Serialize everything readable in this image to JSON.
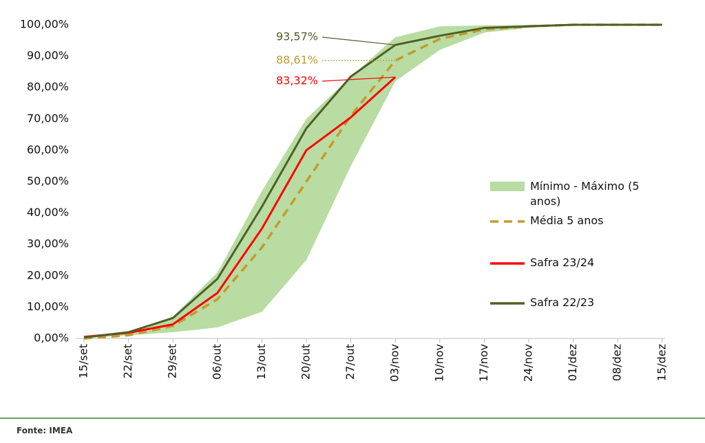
{
  "chart_data": {
    "type": "line",
    "categories": [
      "15/set",
      "22/set",
      "29/set",
      "06/out",
      "13/out",
      "20/out",
      "27/out",
      "03/nov",
      "10/nov",
      "17/nov",
      "24/nov",
      "01/dez",
      "08/dez",
      "15/dez"
    ],
    "ylim": [
      0,
      100
    ],
    "yticks": [
      {
        "value": 0,
        "label": "0,00%"
      },
      {
        "value": 10,
        "label": "10,00%"
      },
      {
        "value": 20,
        "label": "20,00%"
      },
      {
        "value": 30,
        "label": "30,00%"
      },
      {
        "value": 40,
        "label": "40,00%"
      },
      {
        "value": 50,
        "label": "50,00%"
      },
      {
        "value": 60,
        "label": "60,00%"
      },
      {
        "value": 70,
        "label": "70,00%"
      },
      {
        "value": 80,
        "label": "80,00%"
      },
      {
        "value": 90,
        "label": "90,00%"
      },
      {
        "value": 100,
        "label": "100,00%"
      }
    ],
    "series": [
      {
        "name": "Mínimo - Máximo (5 anos)",
        "color": "#b8dca2",
        "kind": "band",
        "low": [
          0,
          1,
          2,
          3.5,
          8.5,
          25,
          55,
          82,
          92,
          97.5,
          99,
          100,
          100,
          100
        ],
        "high": [
          0.5,
          2,
          7,
          21,
          47,
          70,
          83.5,
          96,
          99.5,
          99.8,
          100,
          100,
          100,
          100
        ]
      },
      {
        "name": "Média 5 anos",
        "color": "#c39b2c",
        "dashed": true,
        "values": [
          0,
          1,
          4,
          12.5,
          29,
          50,
          71,
          88.61,
          95.5,
          98.5,
          99.5,
          100,
          100,
          100
        ],
        "value_labels": [
          null,
          null,
          null,
          null,
          null,
          null,
          null,
          "88,61%",
          null,
          null,
          null,
          null,
          null,
          null
        ]
      },
      {
        "name": "Safra 23/24",
        "color": "#ff0000",
        "values": [
          0.5,
          1.8,
          4.5,
          14.5,
          35,
          60,
          70.5,
          83.32,
          null,
          null,
          null,
          null,
          null,
          null
        ],
        "value_labels": [
          null,
          null,
          null,
          null,
          null,
          null,
          null,
          "83,32%",
          null,
          null,
          null,
          null,
          null,
          null
        ]
      },
      {
        "name": "Safra 22/23",
        "color": "#4e5f26",
        "values": [
          0.3,
          2,
          6.5,
          19,
          42,
          67,
          83.5,
          93.57,
          96.5,
          99,
          99.5,
          100,
          100,
          100
        ],
        "value_labels": [
          null,
          null,
          null,
          null,
          null,
          null,
          null,
          "93,57%",
          null,
          null,
          null,
          null,
          null,
          null
        ]
      }
    ],
    "source": "Fonte: IMEA"
  }
}
